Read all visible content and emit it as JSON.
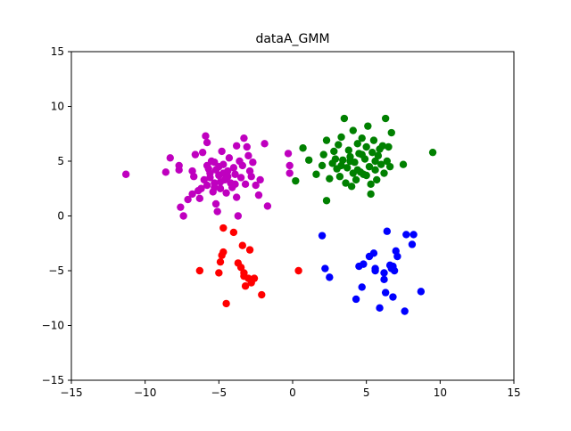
{
  "chart_data": {
    "type": "scatter",
    "title": "dataA_GMM",
    "xlabel": "",
    "ylabel": "",
    "xlim": [
      -15,
      15
    ],
    "ylim": [
      -15,
      15
    ],
    "xticks": [
      -15,
      -10,
      -5,
      0,
      5,
      10,
      15
    ],
    "yticks": [
      -15,
      -10,
      -5,
      0,
      5,
      10,
      15
    ],
    "xtick_labels": [
      "−15",
      "−10",
      "−5",
      "0",
      "5",
      "10",
      "15"
    ],
    "ytick_labels": [
      "−15",
      "−10",
      "−5",
      "0",
      "5",
      "10",
      "15"
    ],
    "grid": false,
    "legend": false,
    "series": [
      {
        "color": "#bf00bf",
        "points": [
          [
            -11.3,
            3.8
          ],
          [
            -8.6,
            4.0
          ],
          [
            -8.3,
            5.3
          ],
          [
            -7.7,
            4.2
          ],
          [
            -7.7,
            4.6
          ],
          [
            -7.6,
            0.8
          ],
          [
            -7.4,
            0.0
          ],
          [
            -7.1,
            1.5
          ],
          [
            -6.8,
            2.0
          ],
          [
            -6.8,
            4.1
          ],
          [
            -6.7,
            3.6
          ],
          [
            -6.6,
            5.6
          ],
          [
            -6.4,
            2.3
          ],
          [
            -6.3,
            1.6
          ],
          [
            -6.2,
            2.5
          ],
          [
            -6.1,
            5.8
          ],
          [
            -5.9,
            7.3
          ],
          [
            -5.8,
            6.7
          ],
          [
            -5.8,
            2.8
          ],
          [
            -5.7,
            4.3
          ],
          [
            -5.6,
            3.5
          ],
          [
            -5.5,
            5.0
          ],
          [
            -5.4,
            2.2
          ],
          [
            -5.3,
            4.9
          ],
          [
            -5.3,
            3.0
          ],
          [
            -5.2,
            1.1
          ],
          [
            -5.1,
            0.4
          ],
          [
            -5.0,
            3.7
          ],
          [
            -5.0,
            4.5
          ],
          [
            -4.9,
            2.5
          ],
          [
            -4.8,
            5.9
          ],
          [
            -4.7,
            4.7
          ],
          [
            -4.6,
            3.3
          ],
          [
            -4.5,
            2.1
          ],
          [
            -4.4,
            4.1
          ],
          [
            -4.3,
            5.3
          ],
          [
            -4.2,
            3.0
          ],
          [
            -4.1,
            2.6
          ],
          [
            -4.0,
            4.4
          ],
          [
            -3.9,
            3.8
          ],
          [
            -3.8,
            6.4
          ],
          [
            -3.8,
            1.7
          ],
          [
            -3.7,
            0.0
          ],
          [
            -3.6,
            5.0
          ],
          [
            -3.5,
            3.5
          ],
          [
            -3.4,
            4.6
          ],
          [
            -3.3,
            7.1
          ],
          [
            -3.2,
            2.9
          ],
          [
            -3.1,
            6.3
          ],
          [
            -3.0,
            5.5
          ],
          [
            -2.9,
            4.1
          ],
          [
            -2.8,
            3.6
          ],
          [
            -2.7,
            4.9
          ],
          [
            -2.5,
            2.8
          ],
          [
            -2.3,
            1.9
          ],
          [
            -2.2,
            3.3
          ],
          [
            -1.9,
            6.6
          ],
          [
            -1.7,
            0.9
          ],
          [
            -0.3,
            5.7
          ],
          [
            -0.2,
            4.6
          ],
          [
            -0.2,
            3.9
          ],
          [
            -5.6,
            3.9
          ],
          [
            -5.2,
            4.2
          ],
          [
            -4.7,
            3.9
          ],
          [
            -4.9,
            3.1
          ],
          [
            -5.3,
            2.6
          ],
          [
            -6.0,
            3.3
          ],
          [
            -4.4,
            3.6
          ],
          [
            -3.9,
            2.9
          ],
          [
            -5.8,
            4.6
          ]
        ]
      },
      {
        "color": "#008000",
        "points": [
          [
            0.2,
            3.2
          ],
          [
            0.7,
            6.2
          ],
          [
            1.1,
            5.1
          ],
          [
            1.6,
            3.8
          ],
          [
            2.0,
            4.6
          ],
          [
            2.1,
            5.6
          ],
          [
            2.3,
            1.4
          ],
          [
            2.3,
            6.9
          ],
          [
            2.5,
            3.4
          ],
          [
            2.7,
            4.8
          ],
          [
            2.8,
            5.9
          ],
          [
            3.0,
            4.3
          ],
          [
            3.1,
            6.5
          ],
          [
            3.2,
            3.6
          ],
          [
            3.3,
            7.2
          ],
          [
            3.4,
            5.1
          ],
          [
            3.5,
            8.9
          ],
          [
            3.6,
            3.0
          ],
          [
            3.7,
            4.4
          ],
          [
            3.8,
            6.0
          ],
          [
            3.9,
            5.4
          ],
          [
            4.0,
            2.7
          ],
          [
            4.1,
            7.8
          ],
          [
            4.2,
            4.9
          ],
          [
            4.3,
            3.3
          ],
          [
            4.4,
            6.6
          ],
          [
            4.5,
            5.7
          ],
          [
            4.6,
            4.0
          ],
          [
            4.7,
            7.1
          ],
          [
            4.8,
            3.8
          ],
          [
            4.9,
            5.2
          ],
          [
            5.0,
            6.3
          ],
          [
            5.1,
            8.2
          ],
          [
            5.2,
            4.5
          ],
          [
            5.3,
            2.9
          ],
          [
            5.3,
            2.0
          ],
          [
            5.4,
            5.8
          ],
          [
            5.5,
            6.9
          ],
          [
            5.6,
            4.2
          ],
          [
            5.7,
            3.3
          ],
          [
            5.8,
            5.5
          ],
          [
            5.9,
            6.1
          ],
          [
            6.0,
            4.7
          ],
          [
            6.1,
            6.4
          ],
          [
            6.2,
            3.9
          ],
          [
            6.3,
            8.9
          ],
          [
            6.4,
            5.0
          ],
          [
            6.5,
            6.3
          ],
          [
            6.6,
            4.5
          ],
          [
            6.7,
            7.6
          ],
          [
            7.5,
            4.7
          ],
          [
            9.5,
            5.8
          ],
          [
            3.9,
            5.0
          ],
          [
            4.4,
            4.2
          ],
          [
            5.0,
            3.7
          ],
          [
            4.1,
            3.9
          ],
          [
            3.3,
            4.6
          ],
          [
            4.7,
            5.6
          ],
          [
            5.6,
            5.0
          ],
          [
            2.9,
            5.2
          ]
        ]
      },
      {
        "color": "#ff0000",
        "points": [
          [
            -6.3,
            -5.0
          ],
          [
            -5.0,
            -5.2
          ],
          [
            -4.9,
            -4.2
          ],
          [
            -4.8,
            -3.6
          ],
          [
            -4.7,
            -1.1
          ],
          [
            -4.7,
            -3.3
          ],
          [
            -4.5,
            -8.0
          ],
          [
            -4.0,
            -1.5
          ],
          [
            -3.7,
            -4.3
          ],
          [
            -3.5,
            -4.7
          ],
          [
            -3.4,
            -2.7
          ],
          [
            -3.3,
            -5.2
          ],
          [
            -3.2,
            -6.4
          ],
          [
            -3.0,
            -5.7
          ],
          [
            -2.9,
            -3.1
          ],
          [
            -2.8,
            -6.1
          ],
          [
            -2.6,
            -5.7
          ],
          [
            -2.1,
            -7.2
          ],
          [
            0.4,
            -5.0
          ],
          [
            -3.3,
            -5.5
          ]
        ]
      },
      {
        "color": "#0000ff",
        "points": [
          [
            2.0,
            -1.8
          ],
          [
            2.2,
            -4.8
          ],
          [
            2.5,
            -5.6
          ],
          [
            4.3,
            -7.6
          ],
          [
            4.5,
            -4.6
          ],
          [
            4.7,
            -6.5
          ],
          [
            4.8,
            -4.4
          ],
          [
            5.2,
            -3.7
          ],
          [
            5.5,
            -3.4
          ],
          [
            5.6,
            -5.0
          ],
          [
            5.6,
            -4.8
          ],
          [
            5.9,
            -8.4
          ],
          [
            6.2,
            -5.8
          ],
          [
            6.3,
            -7.0
          ],
          [
            6.4,
            -1.4
          ],
          [
            6.6,
            -4.5
          ],
          [
            6.7,
            -4.8
          ],
          [
            6.8,
            -7.4
          ],
          [
            6.8,
            -4.6
          ],
          [
            7.0,
            -3.2
          ],
          [
            7.1,
            -3.7
          ],
          [
            7.6,
            -8.7
          ],
          [
            7.7,
            -1.7
          ],
          [
            8.1,
            -2.6
          ],
          [
            8.2,
            -1.7
          ],
          [
            8.7,
            -6.9
          ],
          [
            6.9,
            -5.0
          ],
          [
            6.2,
            -5.2
          ]
        ]
      }
    ]
  }
}
